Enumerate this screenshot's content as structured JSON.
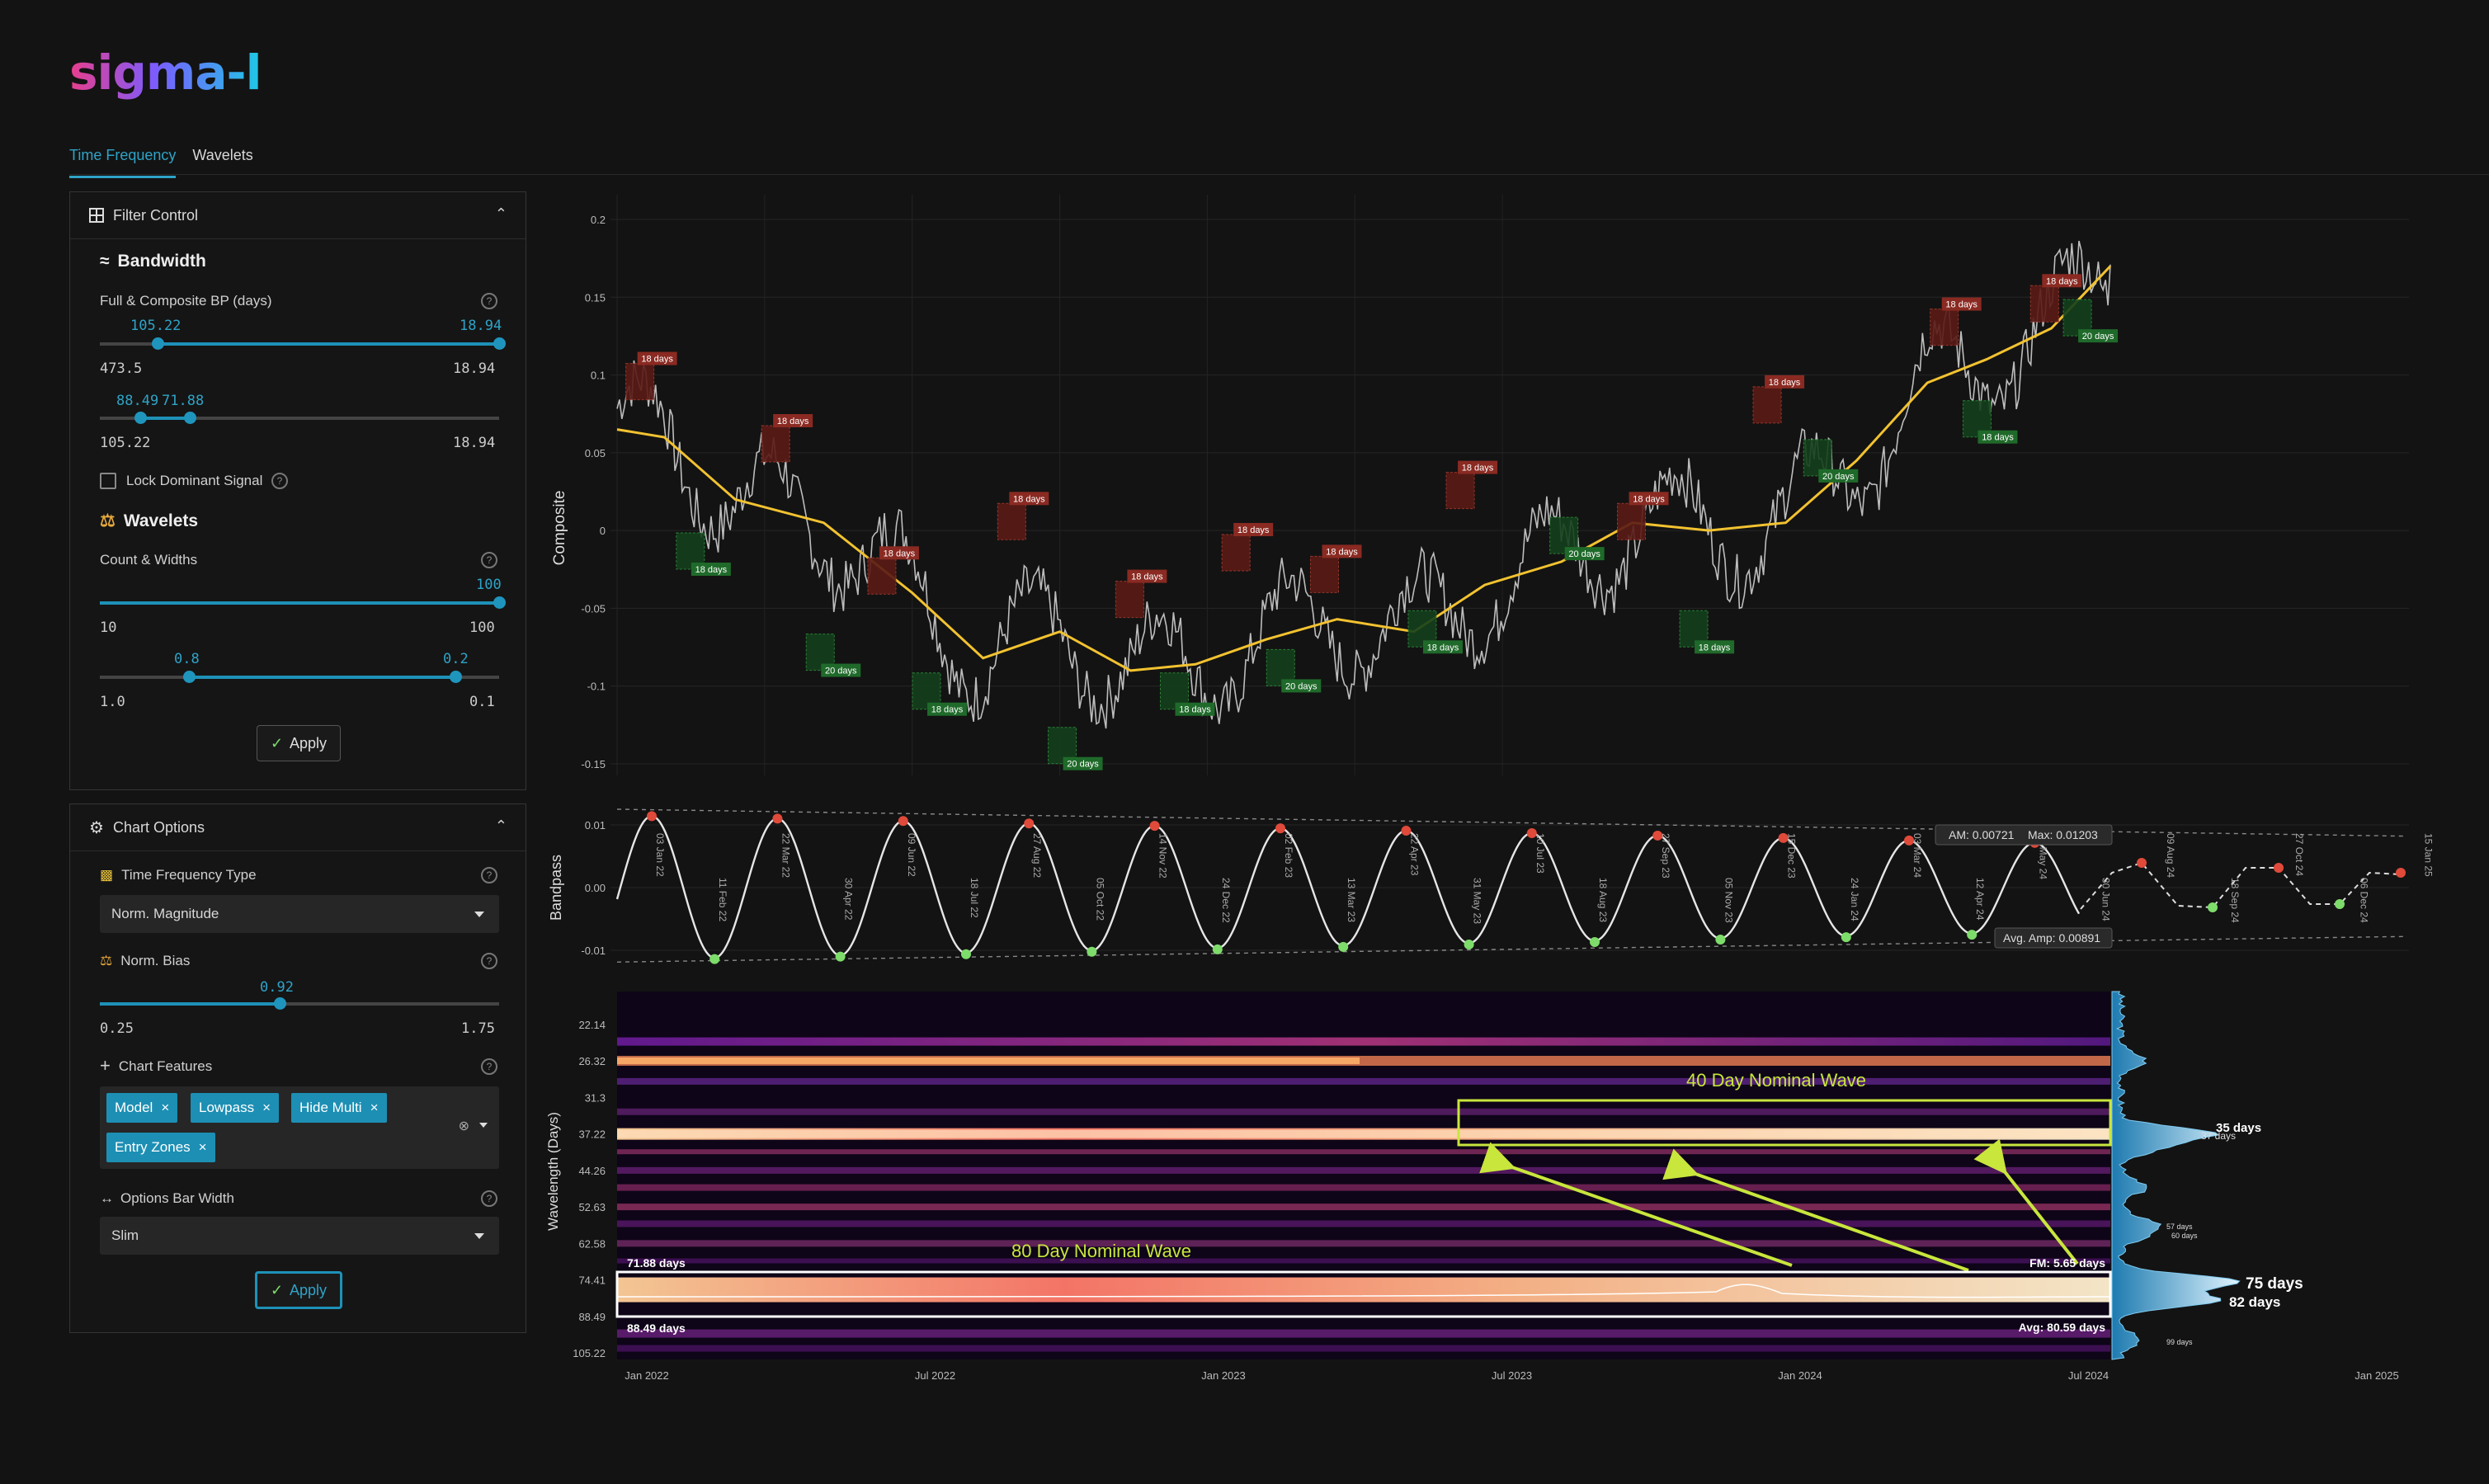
{
  "app": {
    "logo": "sigma-l"
  },
  "tabs": [
    {
      "label": "Time Frequency",
      "active": true
    },
    {
      "label": "Wavelets",
      "active": false
    }
  ],
  "filter_control": {
    "title": "Filter Control",
    "bandwidth_title": "Bandwidth",
    "bp_label": "Full & Composite BP (days)",
    "slider1": {
      "low_value": "105.22",
      "high_value": "18.94",
      "min": "473.5",
      "max": "18.94"
    },
    "slider2": {
      "low_value": "88.49",
      "high_value": "71.88",
      "min": "105.22",
      "max": "18.94"
    },
    "lock_label": "Lock Dominant Signal",
    "wavelets_title": "Wavelets",
    "count_label": "Count & Widths",
    "slider3": {
      "value": "100",
      "min": "10",
      "max": "100"
    },
    "slider4": {
      "low_value": "0.8",
      "high_value": "0.2",
      "min": "1.0",
      "max": "0.1"
    },
    "apply_label": "Apply"
  },
  "chart_options": {
    "title": "Chart Options",
    "tf_type_label": "Time Frequency Type",
    "tf_type_value": "Norm. Magnitude",
    "bias_label": "Norm. Bias",
    "bias_slider": {
      "value": "0.92",
      "min": "0.25",
      "max": "1.75",
      "fraction": 0.45
    },
    "features_label": "Chart Features",
    "features": [
      "Model",
      "Lowpass",
      "Hide Multi",
      "Entry Zones"
    ],
    "bar_width_label": "Options Bar Width",
    "bar_width_value": "Slim",
    "apply_label": "Apply"
  },
  "composite_chart": {
    "ylabel": "Composite",
    "yticks": [
      "0.2",
      "0.15",
      "0.1",
      "0.05",
      "0",
      "-0.05",
      "-0.1",
      "-0.15"
    ],
    "peak_label": "18 days",
    "trough_labels": [
      "18 days",
      "20 days"
    ]
  },
  "bandpass_chart": {
    "ylabel": "Bandpass",
    "yticks": [
      "0.01",
      "0.00",
      "-0.01"
    ],
    "am_label": "AM: 0.00721",
    "max_label": "Max: 0.01203",
    "avg_amp_label": "Avg. Amp: 0.00891",
    "date_labels": [
      "03 Jan 22",
      "11 Feb 22",
      "22 Mar 22",
      "30 Apr 22",
      "09 Jun 22",
      "18 Jul 22",
      "27 Aug 22",
      "05 Oct 22",
      "14 Nov 22",
      "24 Dec 22",
      "02 Feb 23",
      "13 Mar 23",
      "22 Apr 23",
      "31 May 23",
      "10 Jul 23",
      "18 Aug 23",
      "27 Sep 23",
      "05 Nov 23",
      "15 Dec 23",
      "24 Jan 24",
      "03 Mar 24",
      "12 Apr 24",
      "22 May 24",
      "30 Jun 24",
      "09 Aug 24",
      "18 Sep 24",
      "27 Oct 24",
      "06 Dec 24",
      "15 Jan 25"
    ]
  },
  "wavelet_chart": {
    "ylabel": "Wavelength (Days)",
    "yticks": [
      "22.14",
      "26.32",
      "31.3",
      "37.22",
      "44.26",
      "52.63",
      "62.58",
      "74.41",
      "88.49",
      "105.22"
    ],
    "xticks": [
      "Jan 2022",
      "Jul 2022",
      "Jan 2023",
      "Jul 2023",
      "Jan 2024",
      "Jul 2024",
      "Jan 2025"
    ],
    "annotation_40": "40 Day Nominal Wave",
    "annotation_80": "80 Day Nominal Wave",
    "band_top_label": "71.88 days",
    "band_bottom_label": "88.49 days",
    "fm_label": "FM: 5.65 days",
    "avg_label": "Avg: 80.59 days",
    "histogram_labels": {
      "d35": "35 days",
      "d37": "37 days",
      "d57": "57 days",
      "d60": "60 days",
      "d75": "75 days",
      "d82": "82 days",
      "d99": "99 days"
    },
    "accent_color": "#c8e63c"
  },
  "chart_data": [
    {
      "type": "line",
      "title": "",
      "ylabel": "Composite",
      "ylim": [
        -0.15,
        0.2
      ],
      "series": [
        {
          "x": [
            "Jan 2022",
            "Jul 2022",
            "Jan 2023",
            "Jul 2023",
            "Jan 2024",
            "Jul 2024"
          ],
          "values": [
            0.065,
            -0.085,
            -0.085,
            0.0,
            0.05,
            0.17
          ]
        }
      ]
    },
    {
      "type": "line",
      "title": "",
      "ylabel": "Bandpass",
      "ylim": [
        -0.012,
        0.012
      ]
    }
  ]
}
